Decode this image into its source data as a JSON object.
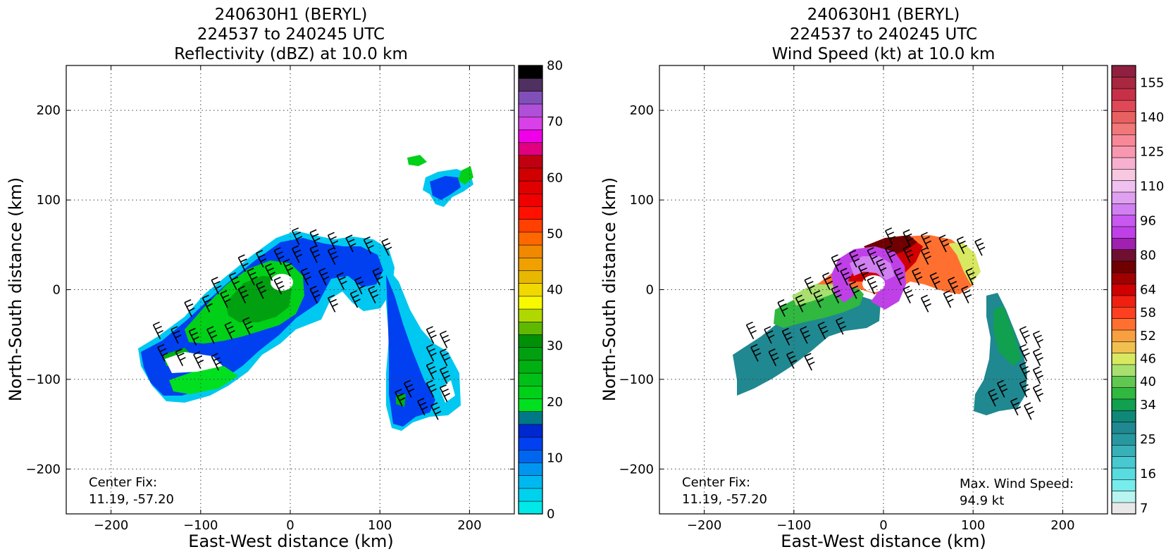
{
  "chart_data": [
    {
      "type": "heatmap",
      "title_lines": [
        "240630H1 (BERYL)",
        "224537 to 240245 UTC",
        "Reflectivity (dBZ) at 10.0 km"
      ],
      "xlabel": "East-West distance (km)",
      "ylabel": "North-South distance (km)",
      "xlim": [
        -250,
        250
      ],
      "ylim": [
        -250,
        250
      ],
      "xticks": [
        -200,
        -100,
        0,
        100,
        200
      ],
      "yticks": [
        -200,
        -100,
        0,
        100,
        200
      ],
      "xtick_labels": [
        "−200",
        "−100",
        "0",
        "100",
        "200"
      ],
      "ytick_labels": [
        "−200",
        "−100",
        "0",
        "100",
        "200"
      ],
      "grid": true,
      "annotation_lines": [
        "Center Fix:",
        "11.19, -57.20"
      ],
      "colorbar": {
        "min": 0,
        "max": 80,
        "ticks": [
          0,
          10,
          20,
          30,
          40,
          50,
          60,
          70,
          80
        ],
        "tick_labels": [
          "0",
          "10",
          "20",
          "30",
          "40",
          "50",
          "60",
          "70",
          "80"
        ],
        "colors": [
          "#00e8e8",
          "#00d2ee",
          "#00b8f0",
          "#0096f0",
          "#0066f0",
          "#0040f0",
          "#0028d0",
          "#007888",
          "#00e020",
          "#00d018",
          "#00c018",
          "#00b010",
          "#00a010",
          "#009008",
          "#60b800",
          "#b0d800",
          "#f8f800",
          "#f0d800",
          "#e8b800",
          "#f0a000",
          "#f08800",
          "#ff6800",
          "#ff4000",
          "#ff1000",
          "#f00000",
          "#e00000",
          "#d00000",
          "#c00010",
          "#e00080",
          "#f000e8",
          "#d840e8",
          "#b050d8",
          "#8050b8",
          "#503060",
          "#000000"
        ]
      },
      "wind_barbs": true
    },
    {
      "type": "heatmap",
      "title_lines": [
        "240630H1 (BERYL)",
        "224537 to 240245 UTC",
        "Wind Speed (kt) at 10.0 km"
      ],
      "xlabel": "East-West distance (km)",
      "ylabel": "North-South distance (km)",
      "xlim": [
        -250,
        250
      ],
      "ylim": [
        -250,
        250
      ],
      "xticks": [
        -200,
        -100,
        0,
        100,
        200
      ],
      "yticks": [
        -200,
        -100,
        0,
        100,
        200
      ],
      "xtick_labels": [
        "−200",
        "−100",
        "0",
        "100",
        "200"
      ],
      "ytick_labels": [
        "−200",
        "−100",
        "0",
        "100",
        "200"
      ],
      "grid": true,
      "annotation_lines": [
        "Center Fix:",
        "11.19, -57.20"
      ],
      "annotation2_lines": [
        "Max. Wind Speed:",
        "94.9 kt"
      ],
      "max_wind_kt": 94.9,
      "colorbar": {
        "tick_labels": [
          "7",
          "16",
          "25",
          "34",
          "40",
          "46",
          "52",
          "58",
          "64",
          "80",
          "96",
          "110",
          "125",
          "140",
          "155"
        ],
        "tick_bins": [
          0,
          3,
          6,
          9,
          11,
          13,
          15,
          17,
          19,
          22,
          25,
          28,
          31,
          34,
          37
        ],
        "colors": [
          "#e8e8e8",
          "#b8f4f0",
          "#78ecec",
          "#58dce0",
          "#48c8d0",
          "#38b0b8",
          "#2898a0",
          "#208890",
          "#108878",
          "#10a050",
          "#30b840",
          "#60c850",
          "#a8e070",
          "#d8e860",
          "#f0c050",
          "#f8a040",
          "#ff7030",
          "#ff4020",
          "#f02010",
          "#d00000",
          "#a00000",
          "#700000",
          "#701030",
          "#a020b0",
          "#c040e8",
          "#c858f0",
          "#d080f0",
          "#e0a0f0",
          "#f0c0f0",
          "#f8c8e0",
          "#f8b0d0",
          "#f898b0",
          "#f88898",
          "#f07878",
          "#e86060",
          "#e04858",
          "#c83048",
          "#a82840",
          "#902040"
        ]
      },
      "wind_barbs": true
    }
  ]
}
